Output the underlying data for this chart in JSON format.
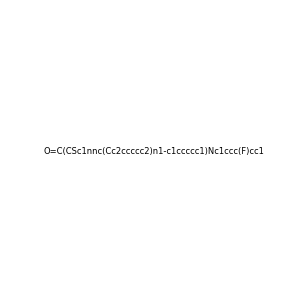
{
  "smiles": "O=C(CSc1nnc(Cc2ccccc2)n1-c1ccccc1)Nc1ccc(F)cc1",
  "image_size": 300,
  "background_color": "#e8e8e8",
  "atom_colors": {
    "N": "#0000FF",
    "O": "#FF0000",
    "S": "#CCCC00",
    "F": "#CC00CC",
    "C": "#000000",
    "H": "#808080"
  }
}
